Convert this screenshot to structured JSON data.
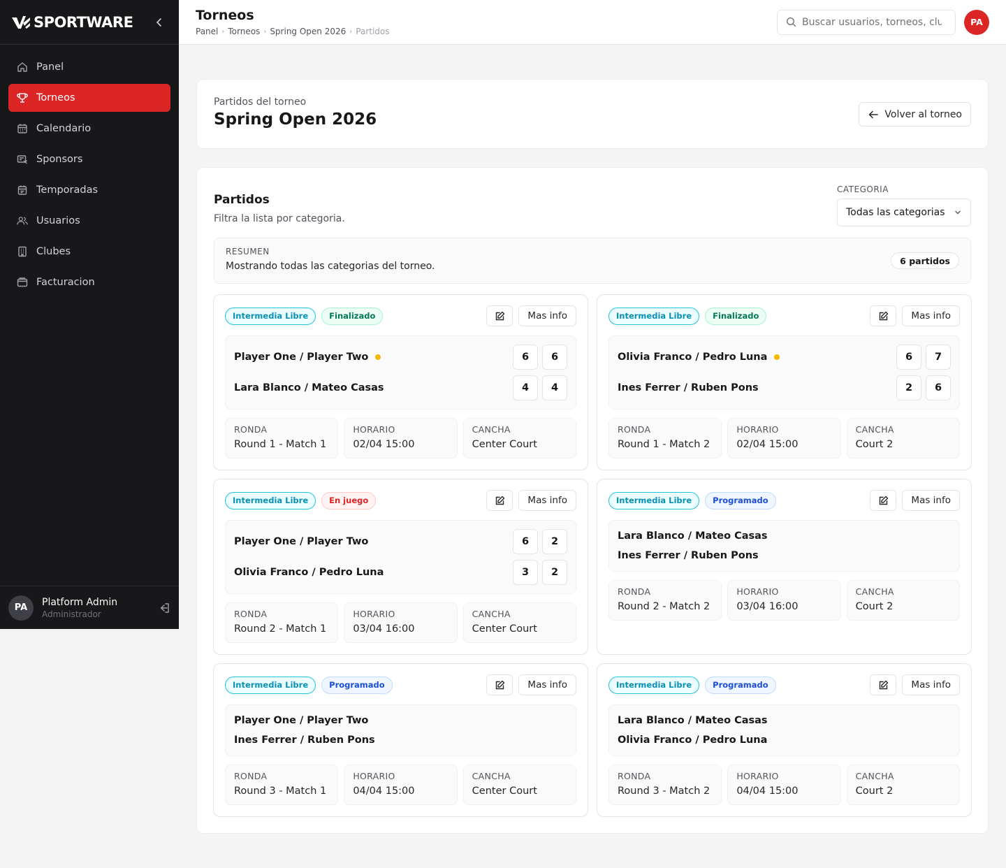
{
  "brand": {
    "name": "SPORTWARE"
  },
  "sidebar": {
    "items": [
      {
        "label": "Panel",
        "icon": "home-icon"
      },
      {
        "label": "Torneos",
        "icon": "trophy-icon",
        "active": true
      },
      {
        "label": "Calendario",
        "icon": "calendar-icon"
      },
      {
        "label": "Sponsors",
        "icon": "sponsor-icon"
      },
      {
        "label": "Temporadas",
        "icon": "season-icon"
      },
      {
        "label": "Usuarios",
        "icon": "users-icon"
      },
      {
        "label": "Clubes",
        "icon": "building-icon"
      },
      {
        "label": "Facturacion",
        "icon": "wallet-icon"
      }
    ],
    "user": {
      "initials": "PA",
      "name": "Platform Admin",
      "role": "Administrador"
    }
  },
  "header": {
    "title": "Torneos",
    "breadcrumb": [
      "Panel",
      "Torneos",
      "Spring Open 2026",
      "Partidos"
    ],
    "search_placeholder": "Buscar usuarios, torneos, clubes...",
    "avatar_initials": "PA"
  },
  "page": {
    "subtitle": "Partidos del torneo",
    "title": "Spring Open 2026",
    "back_label": "Volver al torneo"
  },
  "list": {
    "title": "Partidos",
    "description": "Filtra la lista por categoria.",
    "filter_label": "CATEGORIA",
    "filter_value": "Todas las categorias",
    "summary_label": "RESUMEN",
    "summary_text": "Mostrando todas las categorias del torneo.",
    "summary_count": "6 partidos"
  },
  "labels": {
    "ronda": "RONDA",
    "horario": "HORARIO",
    "cancha": "CANCHA",
    "info": "Mas info"
  },
  "colors": {
    "accent": "#dc2626",
    "serve_dot": "#f5b800"
  },
  "matches": [
    {
      "category": "Intermedia Libre",
      "status": "Finalizado",
      "status_type": "fin",
      "team1": "Player One / Player Two",
      "team2": "Lara Blanco / Mateo Casas",
      "score1": [
        "6",
        "6"
      ],
      "score2": [
        "4",
        "4"
      ],
      "serve": 1,
      "ronda": "Round 1 - Match 1",
      "horario": "02/04 15:00",
      "cancha": "Center Court"
    },
    {
      "category": "Intermedia Libre",
      "status": "Finalizado",
      "status_type": "fin",
      "team1": "Olivia Franco / Pedro Luna",
      "team2": "Ines Ferrer / Ruben Pons",
      "score1": [
        "6",
        "7"
      ],
      "score2": [
        "2",
        "6"
      ],
      "serve": 1,
      "ronda": "Round 1 - Match 2",
      "horario": "02/04 15:00",
      "cancha": "Court 2"
    },
    {
      "category": "Intermedia Libre",
      "status": "En juego",
      "status_type": "live",
      "team1": "Player One / Player Two",
      "team2": "Olivia Franco / Pedro Luna",
      "score1": [
        "6",
        "2"
      ],
      "score2": [
        "3",
        "2"
      ],
      "serve": 0,
      "ronda": "Round 2 - Match 1",
      "horario": "03/04 16:00",
      "cancha": "Center Court"
    },
    {
      "category": "Intermedia Libre",
      "status": "Programado",
      "status_type": "prog",
      "team1": "Lara Blanco / Mateo Casas",
      "team2": "Ines Ferrer / Ruben Pons",
      "score1": [],
      "score2": [],
      "serve": 0,
      "ronda": "Round 2 - Match 2",
      "horario": "03/04 16:00",
      "cancha": "Court 2"
    },
    {
      "category": "Intermedia Libre",
      "status": "Programado",
      "status_type": "prog",
      "team1": "Player One / Player Two",
      "team2": "Ines Ferrer / Ruben Pons",
      "score1": [],
      "score2": [],
      "serve": 0,
      "ronda": "Round 3 - Match 1",
      "horario": "04/04 15:00",
      "cancha": "Center Court"
    },
    {
      "category": "Intermedia Libre",
      "status": "Programado",
      "status_type": "prog",
      "team1": "Lara Blanco / Mateo Casas",
      "team2": "Olivia Franco / Pedro Luna",
      "score1": [],
      "score2": [],
      "serve": 0,
      "ronda": "Round 3 - Match 2",
      "horario": "04/04 15:00",
      "cancha": "Court 2"
    }
  ]
}
